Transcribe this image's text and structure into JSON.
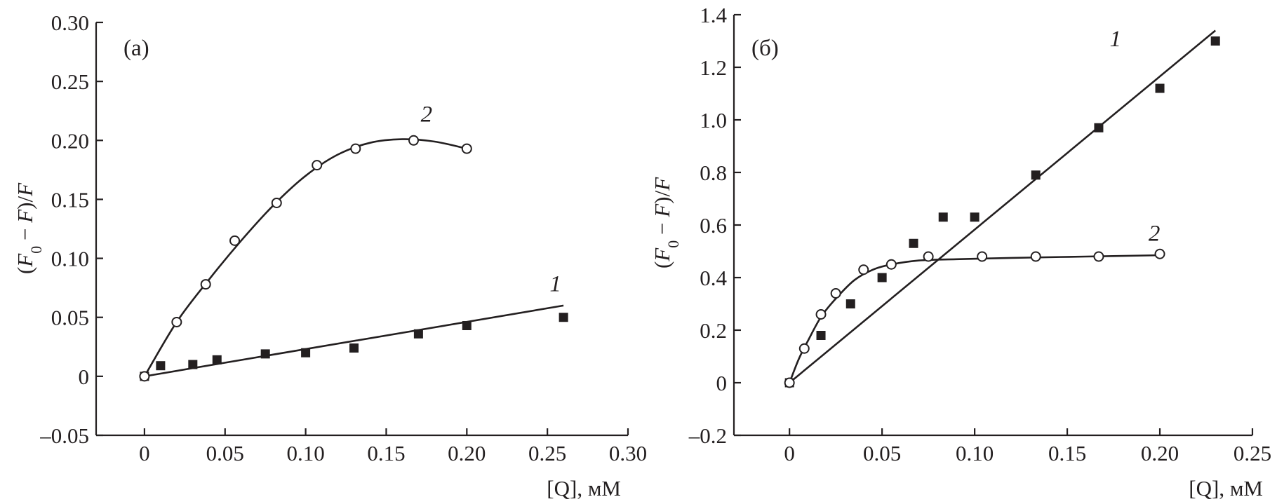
{
  "chart_data": [
    {
      "type": "scatter",
      "panel_label": "(а)",
      "xlabel": "[Q], мМ",
      "ylabel": {
        "open": "(",
        "f0": "F",
        "f0_sub": "0",
        "minus": " − ",
        "f": "F",
        "close": ")/",
        "denom": "F"
      },
      "xlim": [
        -0.03,
        0.3
      ],
      "ylim": [
        -0.05,
        0.3
      ],
      "xticks": [
        0,
        0.05,
        0.1,
        0.15,
        0.2,
        0.25,
        0.3
      ],
      "xtick_labels": [
        "0",
        "0.05",
        "0.10",
        "0.15",
        "0.20",
        "0.25",
        "0.30"
      ],
      "yticks": [
        -0.05,
        0,
        0.05,
        0.1,
        0.15,
        0.2,
        0.25,
        0.3
      ],
      "ytick_labels": [
        "–0.05",
        "0",
        "0.05",
        "0.10",
        "0.15",
        "0.20",
        "0.25",
        "0.30"
      ],
      "grid": false,
      "series": [
        {
          "name": "1",
          "marker": "filled-square",
          "x": [
            0.0,
            0.01,
            0.03,
            0.045,
            0.075,
            0.1,
            0.13,
            0.17,
            0.2,
            0.26
          ],
          "y": [
            0.0,
            0.009,
            0.01,
            0.014,
            0.019,
            0.02,
            0.024,
            0.036,
            0.043,
            0.05
          ],
          "fit": {
            "kind": "line",
            "x": [
              0.0,
              0.26
            ],
            "y": [
              0.0,
              0.06
            ]
          },
          "label_anchor": {
            "x": 0.255,
            "y": 0.072
          }
        },
        {
          "name": "2",
          "marker": "open-circle",
          "x": [
            0.0,
            0.02,
            0.038,
            0.056,
            0.082,
            0.107,
            0.131,
            0.167,
            0.2
          ],
          "y": [
            0.0,
            0.046,
            0.078,
            0.115,
            0.147,
            0.179,
            0.193,
            0.2,
            0.193
          ],
          "fit": {
            "kind": "smooth",
            "x": [
              0.0,
              0.02,
              0.04,
              0.06,
              0.08,
              0.1,
              0.12,
              0.14,
              0.16,
              0.18,
              0.2
            ],
            "y": [
              0.0,
              0.046,
              0.082,
              0.115,
              0.145,
              0.17,
              0.188,
              0.198,
              0.201,
              0.199,
              0.193
            ]
          },
          "label_anchor": {
            "x": 0.175,
            "y": 0.216
          }
        }
      ]
    },
    {
      "type": "scatter",
      "panel_label": "(б)",
      "xlabel": "[Q], мМ",
      "ylabel": {
        "open": "(",
        "f0": "F",
        "f0_sub": "0",
        "minus": " − ",
        "f": "F",
        "close": ")/",
        "denom": "F"
      },
      "xlim": [
        -0.03,
        0.25
      ],
      "ylim": [
        -0.2,
        1.4
      ],
      "xticks": [
        0,
        0.05,
        0.1,
        0.15,
        0.2,
        0.25
      ],
      "xtick_labels": [
        "0",
        "0.05",
        "0.10",
        "0.15",
        "0.20",
        "0.25"
      ],
      "yticks": [
        -0.2,
        0,
        0.2,
        0.4,
        0.6,
        0.8,
        1.0,
        1.2,
        1.4
      ],
      "ytick_labels": [
        "–0.2",
        "0",
        "0.2",
        "0.4",
        "0.6",
        "0.8",
        "1.0",
        "1.2",
        "1.4"
      ],
      "grid": false,
      "series": [
        {
          "name": "1",
          "marker": "filled-square",
          "x": [
            0.0,
            0.017,
            0.033,
            0.05,
            0.067,
            0.083,
            0.1,
            0.133,
            0.167,
            0.2,
            0.23
          ],
          "y": [
            0.0,
            0.18,
            0.3,
            0.4,
            0.53,
            0.63,
            0.63,
            0.79,
            0.97,
            1.12,
            1.3
          ],
          "fit": {
            "kind": "line",
            "x": [
              0.0,
              0.23
            ],
            "y": [
              0.0,
              1.34
            ]
          },
          "label_anchor": {
            "x": 0.176,
            "y": 1.28
          }
        },
        {
          "name": "2",
          "marker": "open-circle",
          "x": [
            0.0,
            0.008,
            0.017,
            0.025,
            0.04,
            0.055,
            0.075,
            0.104,
            0.133,
            0.167,
            0.2
          ],
          "y": [
            0.0,
            0.13,
            0.26,
            0.34,
            0.43,
            0.45,
            0.48,
            0.48,
            0.48,
            0.48,
            0.49
          ],
          "fit": {
            "kind": "smooth",
            "x": [
              0.0,
              0.005,
              0.01,
              0.017,
              0.025,
              0.035,
              0.045,
              0.055,
              0.07,
              0.09,
              0.12,
              0.16,
              0.2
            ],
            "y": [
              0.0,
              0.09,
              0.16,
              0.25,
              0.32,
              0.39,
              0.43,
              0.45,
              0.465,
              0.47,
              0.475,
              0.48,
              0.485
            ]
          },
          "label_anchor": {
            "x": 0.197,
            "y": 0.54
          }
        }
      ]
    }
  ]
}
